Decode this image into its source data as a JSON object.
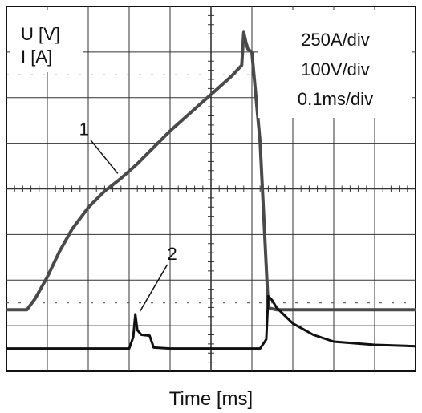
{
  "chart_data": {
    "type": "line",
    "title": "",
    "xlabel": "Time [ms]",
    "ylabel_lines": [
      "U [V]",
      "I [A]"
    ],
    "scale_lines": [
      "250A/div",
      "100V/div",
      "0.1ms/div"
    ],
    "grid": true,
    "xlim": [
      0,
      1.0
    ],
    "x_divisions": 10,
    "y_divisions": 8,
    "series": [
      {
        "name": "1",
        "unit": "A",
        "x": [
          0.0,
          0.05,
          0.07,
          0.1,
          0.13,
          0.16,
          0.2,
          0.24,
          0.28,
          0.32,
          0.36,
          0.4,
          0.44,
          0.48,
          0.52,
          0.55,
          0.575,
          0.58,
          0.585,
          0.59,
          0.6,
          0.62,
          0.64,
          0.66,
          0.7,
          0.8,
          0.9,
          1.0
        ],
        "values": [
          0,
          0,
          60,
          180,
          320,
          440,
          560,
          650,
          720,
          800,
          890,
          980,
          1060,
          1140,
          1220,
          1280,
          1340,
          1520,
          1470,
          1430,
          1410,
          920,
          10,
          0,
          0,
          0,
          0,
          0
        ]
      },
      {
        "name": "2",
        "unit": "V",
        "x": [
          0.0,
          0.1,
          0.2,
          0.3,
          0.31,
          0.315,
          0.32,
          0.33,
          0.35,
          0.36,
          0.4,
          0.5,
          0.55,
          0.56,
          0.58,
          0.6,
          0.62,
          0.635,
          0.64,
          0.65,
          0.66,
          0.7,
          0.75,
          0.8,
          0.9,
          1.0
        ],
        "values": [
          0,
          0,
          0,
          0,
          25,
          75,
          40,
          30,
          28,
          2,
          0,
          0,
          0,
          0,
          0,
          0,
          0,
          20,
          115,
          105,
          90,
          55,
          30,
          15,
          8,
          5
        ]
      }
    ]
  }
}
